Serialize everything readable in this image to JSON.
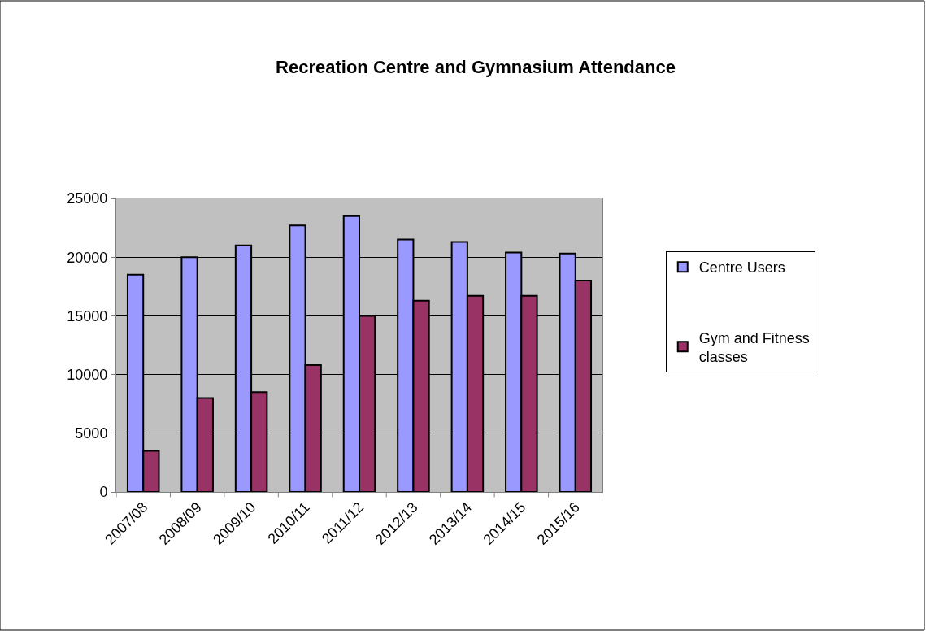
{
  "chart_data": {
    "type": "bar",
    "title": "Recreation Centre and Gymnasium Attendance",
    "categories": [
      "2007/08",
      "2008/09",
      "2009/10",
      "2010/11",
      "2011/12",
      "2012/13",
      "2013/14",
      "2014/15",
      "2015/16"
    ],
    "series": [
      {
        "name": "Centre Users",
        "color": "#9999ff",
        "values": [
          18500,
          20000,
          21000,
          22700,
          23500,
          21500,
          21300,
          20400,
          20300
        ]
      },
      {
        "name": "Gym and Fitness classes",
        "color": "#993366",
        "values": [
          3500,
          8000,
          8500,
          10800,
          15000,
          16300,
          16700,
          16700,
          18000
        ]
      }
    ],
    "ylim": [
      0,
      25000
    ],
    "yticks": [
      0,
      5000,
      10000,
      15000,
      20000,
      25000
    ],
    "grid": "y",
    "legend": "right"
  }
}
